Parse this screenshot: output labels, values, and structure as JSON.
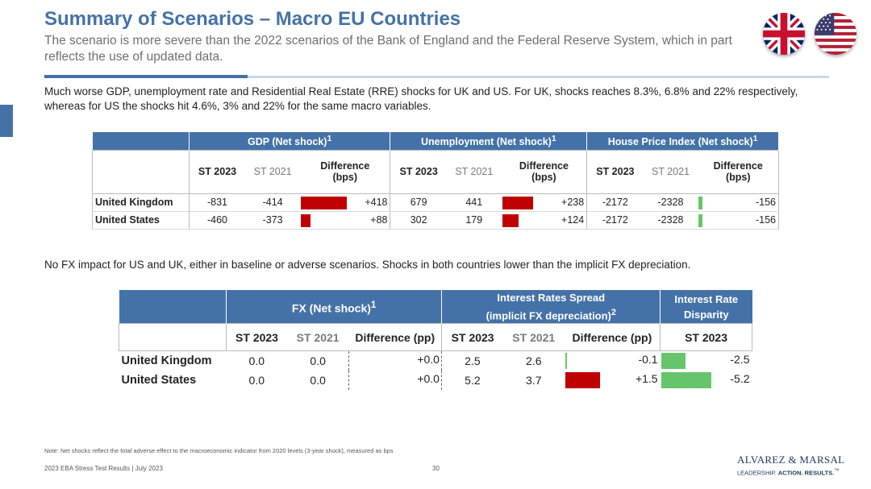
{
  "header": {
    "title": "Summary of Scenarios – Macro EU Countries",
    "subtitle": "The scenario is more severe than the 2022 scenarios of the Bank of England and the Federal Reserve System, which in part reflects the use of updated data."
  },
  "para1": "Much worse GDP, unemployment rate and Residential Real Estate (RRE) shocks for UK and US. For UK, shocks reaches 8.3%, 6.8% and 22% respectively, whereas for US the shocks hit 4.6%, 3% and 22% for the same macro variables.",
  "para2": "No FX impact for US and UK, either in baseline or adverse scenarios. Shocks in both countries lower than the implicit FX depreciation.",
  "colors": {
    "accent": "#4472a8",
    "negative_bar": "#c00000",
    "positive_bar": "#66c56a"
  },
  "table1": {
    "groups": [
      "GDP (Net shock)",
      "Unemployment (Net shock)",
      "House Price Index (Net shock)"
    ],
    "superscript": "1",
    "subheaders": [
      "ST 2023",
      "ST 2021",
      "Difference (bps)"
    ],
    "rows": [
      {
        "country": "United Kingdom",
        "gdp": [
          "-831",
          "-414",
          "+418"
        ],
        "gdp_bar": 0.95,
        "unemp": [
          "679",
          "441",
          "+238"
        ],
        "unemp_bar": 0.54,
        "hpi": [
          "-2172",
          "-2328",
          "-156"
        ],
        "hpi_bar": 0.06
      },
      {
        "country": "United States",
        "gdp": [
          "-460",
          "-373",
          "+88"
        ],
        "gdp_bar": 0.2,
        "unemp": [
          "302",
          "179",
          "+124"
        ],
        "unemp_bar": 0.28,
        "hpi": [
          "-2172",
          "-2328",
          "-156"
        ],
        "hpi_bar": 0.06
      }
    ]
  },
  "table2": {
    "groups": {
      "fx": "FX (Net shock)",
      "fx_sup": "1",
      "irs_line1": "Interest Rates Spread",
      "irs_line2": "(implicit FX depreciation)",
      "irs_sup": "2",
      "ird_line1": "Interest Rate",
      "ird_line2": "Disparity"
    },
    "subheaders": [
      "ST 2023",
      "ST 2021",
      "Difference (pp)",
      "ST 2023",
      "ST 2021",
      "Difference (pp)",
      "ST 2023"
    ],
    "rows": [
      {
        "country": "United Kingdom",
        "fx": [
          "0.0",
          "0.0",
          "+0.0"
        ],
        "irs": [
          "2.5",
          "2.6",
          "-0.1"
        ],
        "irs_bar": 0.02,
        "ird": "-2.5",
        "ird_bar": 0.48
      },
      {
        "country": "United States",
        "fx": [
          "0.0",
          "0.0",
          "+0.0"
        ],
        "irs": [
          "5.2",
          "3.7",
          "+1.5"
        ],
        "irs_bar": 0.37,
        "ird": "-5.2",
        "ird_bar": 1.0
      }
    ]
  },
  "footer": {
    "note": "Note: Net shocks reflect the total adverse effect to the macroeconomic indicator from 2020 levels (3-year shock), measured as bps",
    "left": "2023 EBA Stress Test Results | July 2023",
    "page": "30",
    "brand": "ALVAREZ & MARSAL",
    "tagline_a": "LEADERSHIP.",
    "tagline_b": "ACTION. RESULTS.",
    "tagline_tm": "™"
  },
  "icons": [
    "uk-flag-icon",
    "us-flag-icon"
  ]
}
